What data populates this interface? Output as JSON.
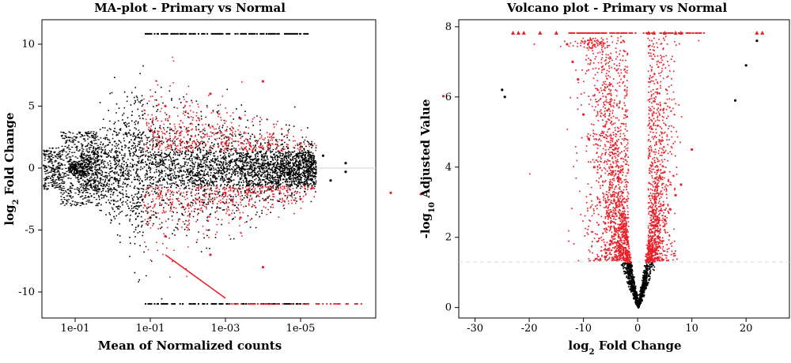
{
  "chart_data": [
    {
      "type": "scatter",
      "title": "MA-plot - Primary vs Normal",
      "xlabel": "Mean of Normalized counts",
      "ylabel_main": "log",
      "ylabel_sub": "2",
      "ylabel_rest": " Fold Change",
      "x_tick_labels": [
        "1e-01",
        "1e-01",
        "1e-03",
        "1e-05"
      ],
      "y_ticks": [
        10,
        5,
        0,
        -5,
        -10
      ],
      "ylim": [
        -11.5,
        11.5
      ],
      "reference_line": 0,
      "series": [
        {
          "name": "",
          "color": "#000000"
        },
        {
          "name": "",
          "color": "#e8202a"
        }
      ],
      "points": [
        [
          0.3,
          0.6,
          0
        ],
        [
          0.32,
          -1.7,
          0
        ],
        [
          0.4,
          1.2,
          0
        ],
        [
          0.45,
          -1.0,
          0
        ],
        [
          1.0,
          3.0,
          0
        ],
        [
          1.0,
          -4.0,
          0
        ],
        [
          1.2,
          5.0,
          1
        ],
        [
          1.2,
          -5.5,
          1
        ],
        [
          1.5,
          3.0,
          1
        ],
        [
          1.5,
          -3.0,
          1
        ],
        [
          1.8,
          6.0,
          1
        ],
        [
          1.8,
          -7.0,
          1
        ],
        [
          2.0,
          2.0,
          1
        ],
        [
          2.0,
          -2.0,
          1
        ],
        [
          2.2,
          4.0,
          1
        ],
        [
          2.2,
          -4.0,
          1
        ],
        [
          2.5,
          7.0,
          1
        ],
        [
          2.5,
          -8.0,
          1
        ],
        [
          3.0,
          2.0,
          1
        ],
        [
          3.0,
          -2.5,
          1
        ],
        [
          3.3,
          1.0,
          0
        ],
        [
          3.4,
          -1.0,
          0
        ],
        [
          3.6,
          0.4,
          0
        ],
        [
          3.6,
          -0.3,
          0
        ],
        [
          4.2,
          -2.0,
          1
        ],
        [
          4.6,
          -2.1,
          1
        ],
        [
          4.9,
          5.8,
          1
        ],
        [
          5.3,
          -1.8,
          1
        ],
        [
          6.1,
          -10.9,
          1
        ]
      ],
      "lower_bound_line": {
        "from": [
          1.2,
          -7.0
        ],
        "to": [
          2.0,
          -10.5
        ],
        "color": "#e8202a"
      }
    },
    {
      "type": "scatter",
      "title": "Volcano plot - Primary vs Normal",
      "xlabel_main": "log",
      "xlabel_sub": "2",
      "xlabel_rest": " Fold Change",
      "ylabel_pre": "-log",
      "ylabel_sub": "10",
      "ylabel_rest": " Adjusted Value",
      "x_ticks": [
        -30,
        -20,
        -10,
        0,
        10,
        20
      ],
      "y_ticks": [
        0,
        2,
        4,
        6,
        8
      ],
      "xlim": [
        -33,
        28
      ],
      "ylim": [
        -0.3,
        8.2
      ],
      "threshold_line": 1.3,
      "series": [
        {
          "name": "",
          "color": "#000000"
        },
        {
          "name": "",
          "color": "#e8202a"
        }
      ],
      "points": [
        [
          -25.0,
          6.2,
          0
        ],
        [
          -24.5,
          6.0,
          0
        ],
        [
          -13.0,
          7.5,
          1
        ],
        [
          -12.0,
          7.0,
          1
        ],
        [
          -11.0,
          6.5,
          1
        ],
        [
          -10.0,
          5.5,
          1
        ],
        [
          -9.0,
          4.8,
          1
        ],
        [
          -8.0,
          4.0,
          1
        ],
        [
          -7.0,
          3.0,
          1
        ],
        [
          -6.0,
          2.4,
          1
        ],
        [
          -5.0,
          1.9,
          1
        ],
        [
          -4.0,
          1.6,
          1
        ],
        [
          -3.0,
          1.5,
          1
        ],
        [
          -2.0,
          1.4,
          1
        ],
        [
          -1.5,
          1.0,
          0
        ],
        [
          -1.0,
          0.6,
          0
        ],
        [
          -0.5,
          0.3,
          0
        ],
        [
          0.0,
          0.05,
          0
        ],
        [
          0.5,
          0.3,
          0
        ],
        [
          1.0,
          0.6,
          0
        ],
        [
          1.5,
          1.0,
          0
        ],
        [
          2.0,
          1.4,
          1
        ],
        [
          3.0,
          1.6,
          1
        ],
        [
          4.0,
          2.0,
          1
        ],
        [
          5.0,
          2.5,
          1
        ],
        [
          6.0,
          2.8,
          1
        ],
        [
          7.0,
          3.2,
          1
        ],
        [
          8.0,
          3.5,
          1
        ],
        [
          10.0,
          4.5,
          1
        ],
        [
          18.0,
          5.9,
          0
        ],
        [
          20.0,
          6.9,
          0
        ],
        [
          22.0,
          7.6,
          0
        ]
      ],
      "capped_markers_at": 7.82,
      "capped_markers_x": [
        -23.0,
        -22.0,
        -21.0,
        -18.0,
        -15.0,
        2.0,
        3.0,
        5.0,
        7.0,
        8.0,
        22.0,
        23.0
      ]
    }
  ]
}
